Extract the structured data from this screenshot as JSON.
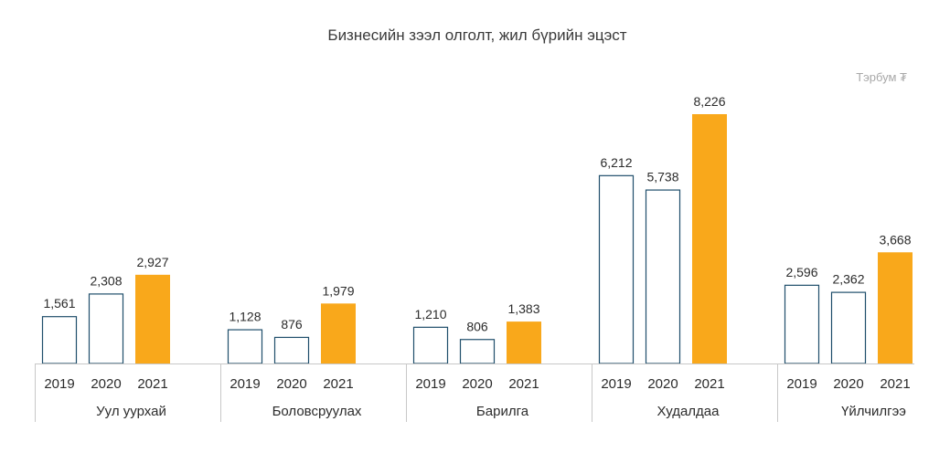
{
  "chart_data": {
    "type": "bar",
    "title": "Бизнесийн зээл олголт, жил бүрийн эцэст",
    "unit_label": "Тэрбум ₮",
    "series_names": [
      "2019",
      "2020",
      "2021"
    ],
    "categories": [
      "Уул уурхай",
      "Боловсруулах",
      "Барилга",
      "Худалдаа",
      "Үйлчилгээ"
    ],
    "groups": [
      {
        "category": "Уул уурхай",
        "values": [
          1561,
          2308,
          2927
        ],
        "labels": [
          "1,561",
          "2,308",
          "2,927"
        ]
      },
      {
        "category": "Боловсруулах",
        "values": [
          1128,
          876,
          1979
        ],
        "labels": [
          "1,128",
          "876",
          "1,979"
        ]
      },
      {
        "category": "Барилга",
        "values": [
          1210,
          806,
          1383
        ],
        "labels": [
          "1,210",
          "806",
          "1,383"
        ]
      },
      {
        "category": "Худалдаа",
        "values": [
          6212,
          5738,
          8226
        ],
        "labels": [
          "6,212",
          "5,738",
          "8,226"
        ]
      },
      {
        "category": "Үйлчилгээ",
        "values": [
          2596,
          2362,
          3668
        ],
        "labels": [
          "2,596",
          "2,362",
          "3,668"
        ]
      }
    ],
    "ylim": [
      0,
      8226
    ],
    "grid": false,
    "colors": {
      "bar_outline": "#1f4e6b",
      "bar_fill_outline": "#ffffff",
      "highlight": "#f9a81b",
      "axis": "#c8c8c8"
    }
  }
}
